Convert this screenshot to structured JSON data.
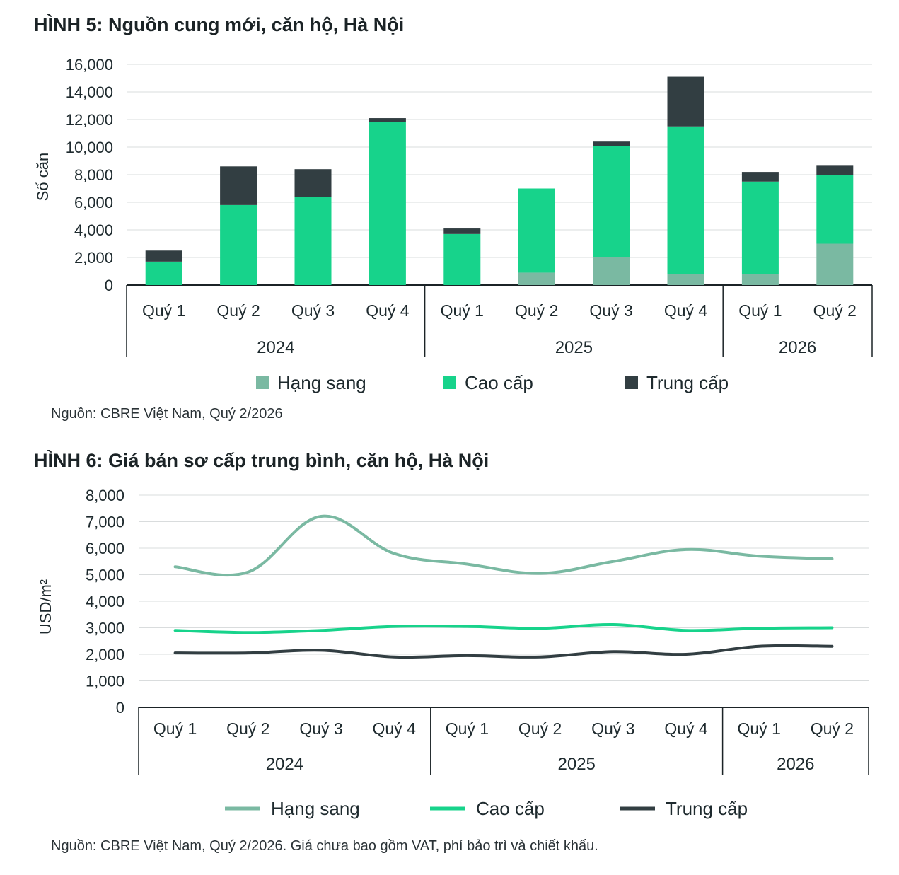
{
  "figure5": {
    "title": "HÌNH 5: Nguồn cung mới, căn hộ, Hà Nội",
    "source": "Nguồn: CBRE Việt Nam, Quý 2/2026",
    "colors": {
      "hang_sang": "#7ab9a2",
      "cao_cap": "#17d38b",
      "trung_cap": "#323e42"
    }
  },
  "figure6": {
    "title": "HÌNH 6: Giá bán sơ cấp trung bình, căn hộ, Hà Nội",
    "source": "Nguồn: CBRE Việt Nam, Quý 2/2026. Giá chưa bao gồm VAT, phí bảo trì và chiết khấu.",
    "colors": {
      "hang_sang": "#7ab9a2",
      "cao_cap": "#17d38b",
      "trung_cap": "#323e42"
    }
  },
  "chart_data": [
    {
      "type": "bar",
      "stacked": true,
      "title": "HÌNH 5: Nguồn cung mới, căn hộ, Hà Nội",
      "ylabel": "Số căn",
      "xlabel": "",
      "ylim": [
        0,
        16000
      ],
      "yticks": [
        "16,000",
        "14,000",
        "12,000",
        "10,000",
        "8,000",
        "6,000",
        "4,000",
        "2,000",
        "0"
      ],
      "categories": [
        "Quý 1",
        "Quý 2",
        "Quý 3",
        "Quý 4",
        "Quý 1",
        "Quý 2",
        "Quý 3",
        "Quý 4",
        "Quý 1",
        "Quý 2"
      ],
      "groups": [
        {
          "label": "2024",
          "count": 4
        },
        {
          "label": "2025",
          "count": 4
        },
        {
          "label": "2026",
          "count": 2
        }
      ],
      "series": [
        {
          "name": "Hạng sang",
          "values": [
            0,
            0,
            0,
            0,
            0,
            900,
            2000,
            800,
            800,
            3000
          ]
        },
        {
          "name": "Cao cấp",
          "values": [
            1700,
            5800,
            6400,
            11800,
            3700,
            6100,
            8100,
            10700,
            6700,
            5000
          ]
        },
        {
          "name": "Trung cấp",
          "values": [
            800,
            2800,
            2000,
            300,
            400,
            0,
            300,
            3600,
            700,
            700
          ]
        }
      ],
      "legend_position": "bottom",
      "grid": true
    },
    {
      "type": "line",
      "title": "HÌNH 6: Giá bán sơ cấp trung bình, căn hộ, Hà Nội",
      "ylabel": "USD/m²",
      "xlabel": "",
      "ylim": [
        0,
        8000
      ],
      "yticks": [
        "8,000",
        "7,000",
        "6,000",
        "5,000",
        "4,000",
        "3,000",
        "2,000",
        "1,000",
        "0"
      ],
      "categories": [
        "Quý 1",
        "Quý 2",
        "Quý 3",
        "Quý 4",
        "Quý 1",
        "Quý 2",
        "Quý 3",
        "Quý 4",
        "Quý 1",
        "Quý 2"
      ],
      "groups": [
        {
          "label": "2024",
          "count": 4
        },
        {
          "label": "2025",
          "count": 4
        },
        {
          "label": "2026",
          "count": 2
        }
      ],
      "series": [
        {
          "name": "Hạng sang",
          "values": [
            5300,
            5100,
            7200,
            5800,
            5400,
            5050,
            5500,
            5950,
            5700,
            5600
          ]
        },
        {
          "name": "Cao cấp",
          "values": [
            2900,
            2820,
            2900,
            3050,
            3050,
            2980,
            3120,
            2900,
            2980,
            3000
          ]
        },
        {
          "name": "Trung cấp",
          "values": [
            2050,
            2050,
            2150,
            1900,
            1950,
            1900,
            2100,
            2000,
            2300,
            2300
          ]
        }
      ],
      "legend_position": "bottom",
      "grid": true
    }
  ]
}
